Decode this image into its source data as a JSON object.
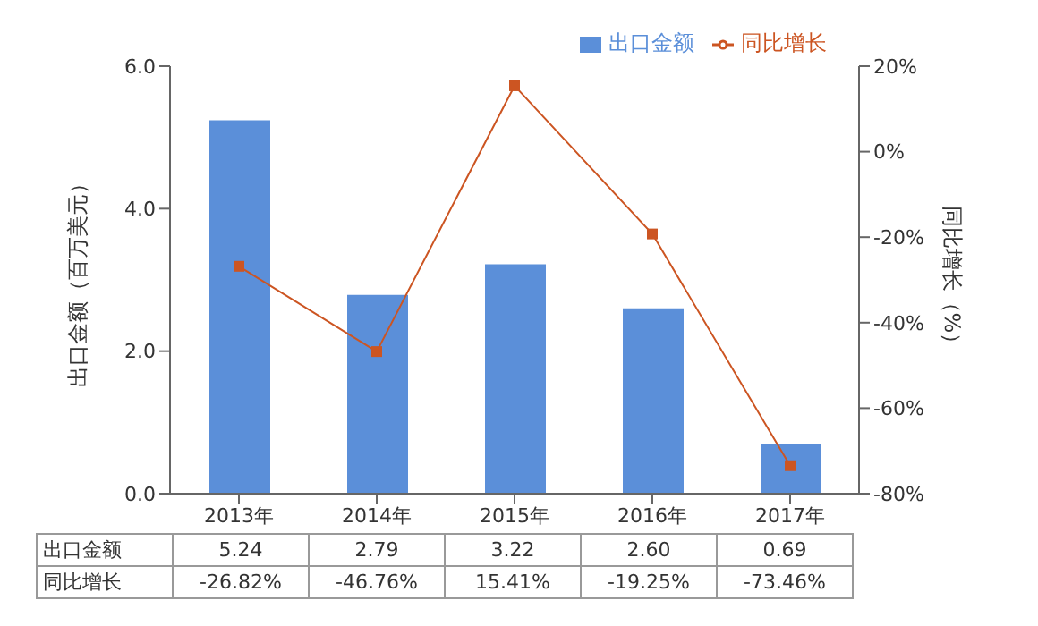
{
  "chart_data": {
    "type": "bar",
    "categories": [
      "2013年",
      "2014年",
      "2015年",
      "2016年",
      "2017年"
    ],
    "ylabel": "出口金额（百万美元）",
    "y2label": "同比增长（%）",
    "ylim": [
      0,
      6
    ],
    "yticks": [
      {
        "value": 0,
        "label": "0.0"
      },
      {
        "value": 2,
        "label": "2.0"
      },
      {
        "value": 4,
        "label": "4.0"
      },
      {
        "value": 6,
        "label": "6.0"
      }
    ],
    "y2lim": [
      -80,
      20
    ],
    "y2ticks": [
      {
        "value": -80,
        "label": "-80%"
      },
      {
        "value": -60,
        "label": "-60%"
      },
      {
        "value": -40,
        "label": "-40%"
      },
      {
        "value": -20,
        "label": "-20%"
      },
      {
        "value": 0,
        "label": "0%"
      },
      {
        "value": 20,
        "label": "20%"
      }
    ],
    "series": [
      {
        "name": "出口金额",
        "color": "#5b8fd9",
        "values": [
          5.24,
          2.79,
          3.22,
          2.6,
          0.69
        ],
        "value_labels": [
          "5.24",
          "2.79",
          "3.22",
          "2.60",
          "0.69"
        ]
      },
      {
        "name": "同比增长",
        "type": "line",
        "axis": "y2",
        "color": "#cc5522",
        "marker": "square",
        "values": [
          -26.82,
          -46.76,
          15.41,
          -19.25,
          -73.46
        ],
        "value_labels": [
          "-26.82%",
          "-46.76%",
          "15.41%",
          "-19.25%",
          "-73.46%"
        ]
      }
    ],
    "legend": "top right",
    "grid": false
  }
}
